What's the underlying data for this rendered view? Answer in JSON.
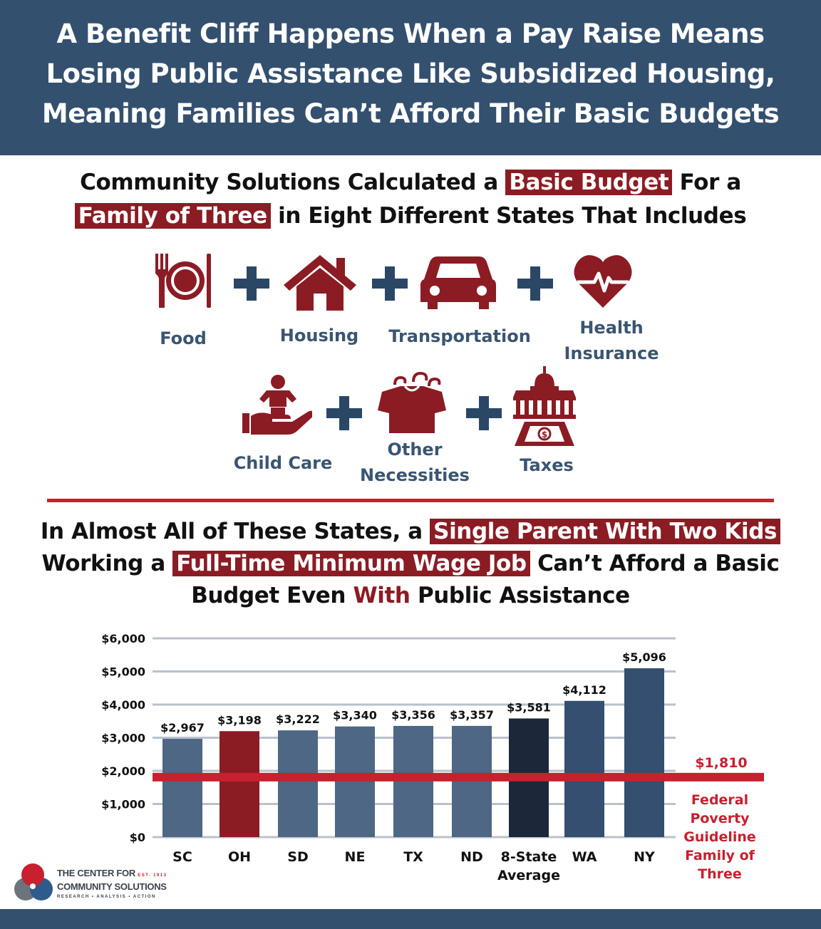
{
  "header": {
    "line1": "A Benefit Cliff Happens When a Pay Raise Means",
    "line2": "Losing Public Assistance Like Subsidized Housing,",
    "line3": "Meaning Families Can’t Afford Their Basic Budgets"
  },
  "intro": {
    "l1_a": "Community Solutions Calculated a ",
    "l1_hl": "Basic Budget",
    "l1_b": " For a",
    "l2_hl": "Family of Three",
    "l2_b": " in Eight Different States That Includes"
  },
  "budget_items": {
    "food": "Food",
    "housing": "Housing",
    "transportation": "Transportation",
    "health_1": "Health",
    "health_2": "Insurance",
    "child_care": "Child Care",
    "other_1": "Other",
    "other_2": "Necessities",
    "taxes": "Taxes"
  },
  "finding": {
    "l1_a": "In Almost All of These States, a ",
    "l1_hl": "Single Parent With Two Kids",
    "l2_a": "Working a ",
    "l2_hl": "Full-Time Minimum Wage Job",
    "l2_b": " Can’t Afford a Basic",
    "l3_a": "Budget Even ",
    "l3_red": "With",
    "l3_b": " Public Assistance"
  },
  "chart_data": {
    "type": "bar",
    "categories": [
      "SC",
      "OH",
      "SD",
      "NE",
      "TX",
      "ND",
      "8-State Average",
      "WA",
      "NY"
    ],
    "category_lines": [
      [
        "SC"
      ],
      [
        "OH"
      ],
      [
        "SD"
      ],
      [
        "NE"
      ],
      [
        "TX"
      ],
      [
        "ND"
      ],
      [
        "8-State",
        "Average"
      ],
      [
        "WA"
      ],
      [
        "NY"
      ]
    ],
    "values": [
      2967,
      3198,
      3222,
      3340,
      3356,
      3357,
      3581,
      4112,
      5096
    ],
    "value_labels": [
      "$2,967",
      "$3,198",
      "$3,222",
      "$3,340",
      "$3,356",
      "$3,357",
      "$3,581",
      "$4,112",
      "$5,096"
    ],
    "bar_colors": [
      "#4d6784",
      "#8b1c24",
      "#4d6784",
      "#4d6784",
      "#4d6784",
      "#4d6784",
      "#1c2739",
      "#344f6f",
      "#344f6f"
    ],
    "ylim": [
      0,
      6000
    ],
    "yticks": [
      0,
      1000,
      2000,
      3000,
      4000,
      5000,
      6000
    ],
    "ytick_labels": [
      "$0",
      "$1,000",
      "$2,000",
      "$3,000",
      "$4,000",
      "$5,000",
      "$6,000"
    ],
    "grid": true,
    "reference_line": {
      "value": 1810,
      "label": "$1,810",
      "caption": [
        "Federal",
        "Poverty",
        "Guideline",
        "Family of",
        "Three"
      ],
      "color": "#c8202e"
    }
  },
  "logo": {
    "line1": "THE CENTER FOR",
    "line2": "COMMUNITY SOLUTIONS",
    "tagline": "RESEARCH • ANALYSIS • ACTION",
    "est": "EST. 1913"
  }
}
